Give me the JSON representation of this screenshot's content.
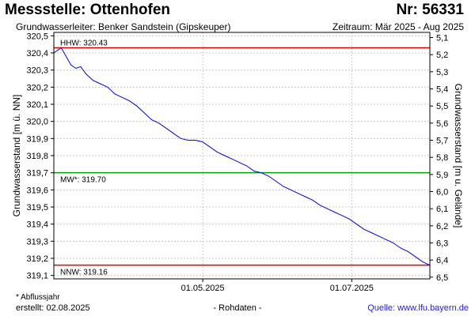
{
  "header": {
    "title": "Messstelle: Ottenhofen",
    "number": "Nr: 56331",
    "aquifer": "Grundwasserleiter:  Benker Sandstein (Gipskeuper)",
    "period": "Zeitraum: Mär 2025 - Aug 2025"
  },
  "footer": {
    "footnote": "* Abflussjahr",
    "created": "erstellt:  02.08.2025",
    "raw": "- Rohdaten -",
    "source": "Quelle:  www.lfu.bayern.de"
  },
  "colors": {
    "series": "#0000ee",
    "hhw": "#e00000",
    "nnw": "#e00000",
    "mw": "#00a000",
    "grid": "#c8c8c8"
  },
  "chart_data": {
    "type": "line",
    "ylabel": "Grundwasserstand [m ü. NN]",
    "y2label": "Grundwasserstand [m u. Gelände]",
    "ylim": [
      319.08,
      320.52
    ],
    "y2lim": [
      6.51,
      5.07
    ],
    "y_ticks": [
      "320,5",
      "320,4",
      "320,3",
      "320,2",
      "320,1",
      "320,0",
      "319,9",
      "319,8",
      "319,7",
      "319,6",
      "319,5",
      "319,4",
      "319,3",
      "319,2",
      "319,1"
    ],
    "y2_ticks": [
      "5,1",
      "5,2",
      "5,3",
      "5,4",
      "5,5",
      "5,6",
      "5,7",
      "5,8",
      "5,9",
      "6,0",
      "6,1",
      "6,2",
      "6,3",
      "6,4",
      "6,5"
    ],
    "xlim": [
      "2025-03-01",
      "2025-08-02"
    ],
    "x_ticks": [
      {
        "date": "2025-05-01",
        "label": "01.05.2025"
      },
      {
        "date": "2025-07-01",
        "label": "01.07.2025"
      }
    ],
    "grid": true,
    "reference_lines": [
      {
        "key": "hhw",
        "label": "HHW: 320.43",
        "value": 320.43
      },
      {
        "key": "mw",
        "label": "MW*: 319.70",
        "value": 319.7
      },
      {
        "key": "nnw",
        "label": "NNW: 319.16",
        "value": 319.16
      }
    ],
    "series": [
      {
        "x": [
          "2025-03-01",
          "2025-03-03",
          "2025-03-04",
          "2025-03-06",
          "2025-03-08",
          "2025-03-10",
          "2025-03-12",
          "2025-03-14",
          "2025-03-17",
          "2025-03-20",
          "2025-03-23",
          "2025-03-26",
          "2025-03-29",
          "2025-04-01",
          "2025-04-04",
          "2025-04-07",
          "2025-04-10",
          "2025-04-13",
          "2025-04-16",
          "2025-04-19",
          "2025-04-22",
          "2025-04-25",
          "2025-04-28",
          "2025-05-01",
          "2025-05-04",
          "2025-05-07",
          "2025-05-10",
          "2025-05-13",
          "2025-05-16",
          "2025-05-19",
          "2025-05-22",
          "2025-05-25",
          "2025-05-28",
          "2025-05-31",
          "2025-06-03",
          "2025-06-06",
          "2025-06-09",
          "2025-06-12",
          "2025-06-15",
          "2025-06-18",
          "2025-06-21",
          "2025-06-24",
          "2025-06-27",
          "2025-06-30",
          "2025-07-03",
          "2025-07-06",
          "2025-07-09",
          "2025-07-12",
          "2025-07-15",
          "2025-07-18",
          "2025-07-21",
          "2025-07-24",
          "2025-07-27",
          "2025-07-30",
          "2025-08-02"
        ],
        "values": [
          320.4,
          320.42,
          320.43,
          320.38,
          320.33,
          320.31,
          320.32,
          320.28,
          320.24,
          320.22,
          320.2,
          320.16,
          320.14,
          320.12,
          320.09,
          320.05,
          320.01,
          319.99,
          319.96,
          319.93,
          319.9,
          319.89,
          319.89,
          319.88,
          319.85,
          319.82,
          319.8,
          319.78,
          319.76,
          319.74,
          319.71,
          319.7,
          319.68,
          319.65,
          319.62,
          319.6,
          319.58,
          319.56,
          319.54,
          319.51,
          319.49,
          319.47,
          319.45,
          319.43,
          319.4,
          319.37,
          319.35,
          319.33,
          319.31,
          319.29,
          319.26,
          319.24,
          319.21,
          319.18,
          319.16
        ]
      }
    ]
  }
}
